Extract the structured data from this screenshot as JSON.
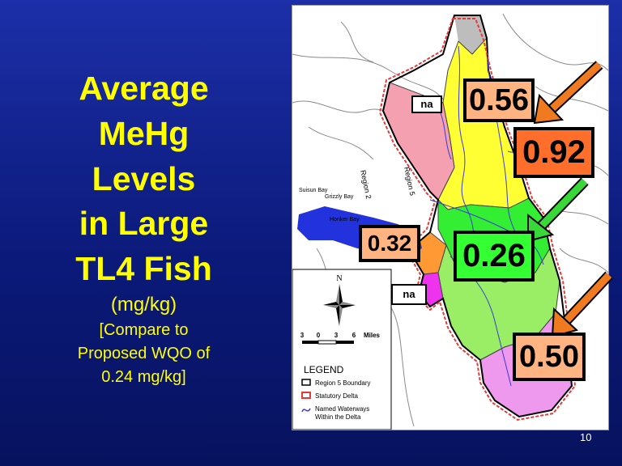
{
  "title": {
    "lines": [
      "Average",
      "MeHg",
      "Levels",
      "in Large",
      "TL4 Fish"
    ],
    "units": "(mg/kg)",
    "compare_lines": [
      "[Compare to",
      "Proposed WQO of",
      "0.24 mg/kg]"
    ]
  },
  "map": {
    "place_labels": {
      "suisun_bay": "Suisun Bay",
      "grizzly_bay": "Grizzly Bay",
      "honker_bay": "Honker Bay",
      "region_5": "Region 5",
      "region_2": "Region 2"
    },
    "compass_label": "N",
    "scale_bar": {
      "ticks": [
        "3",
        "0",
        "3",
        "6"
      ],
      "unit": "Miles"
    },
    "legend": {
      "title": "LEGEND",
      "items": [
        {
          "label": "Region 5 Boundary",
          "swatch": "#000000"
        },
        {
          "label": "Statutory Delta",
          "swatch": "#e23b3b"
        },
        {
          "label": "Named Waterways",
          "label2": "Within the Delta",
          "swatch": "#3b3bd6"
        }
      ]
    },
    "subregion_colors": {
      "north_yellow": "#ffff33",
      "west_pink": "#f4a0b0",
      "central_green": "#33ee33",
      "east_green": "#99ee66",
      "south_violet": "#ee99ee",
      "west_orange": "#ff9933",
      "west_magenta": "#ee33ee",
      "gray_north": "#bdbdbd",
      "bay_water": "#2233dd"
    }
  },
  "value_labels": [
    {
      "id": "north",
      "text": "0.56",
      "bg": "#ffb482"
    },
    {
      "id": "northeast",
      "text": "0.92",
      "bg": "#ff6f2b"
    },
    {
      "id": "west",
      "text": "0.32",
      "bg": "#ffb482"
    },
    {
      "id": "central",
      "text": "0.26",
      "bg": "#33ff33"
    },
    {
      "id": "south",
      "text": "0.50",
      "bg": "#ffb482"
    }
  ],
  "na_labels": [
    {
      "id": "north-west",
      "text": "na"
    },
    {
      "id": "south-west",
      "text": "na"
    }
  ],
  "arrow_colors": {
    "orange": "#f07a20",
    "green": "#39d839"
  },
  "page_number": "10"
}
